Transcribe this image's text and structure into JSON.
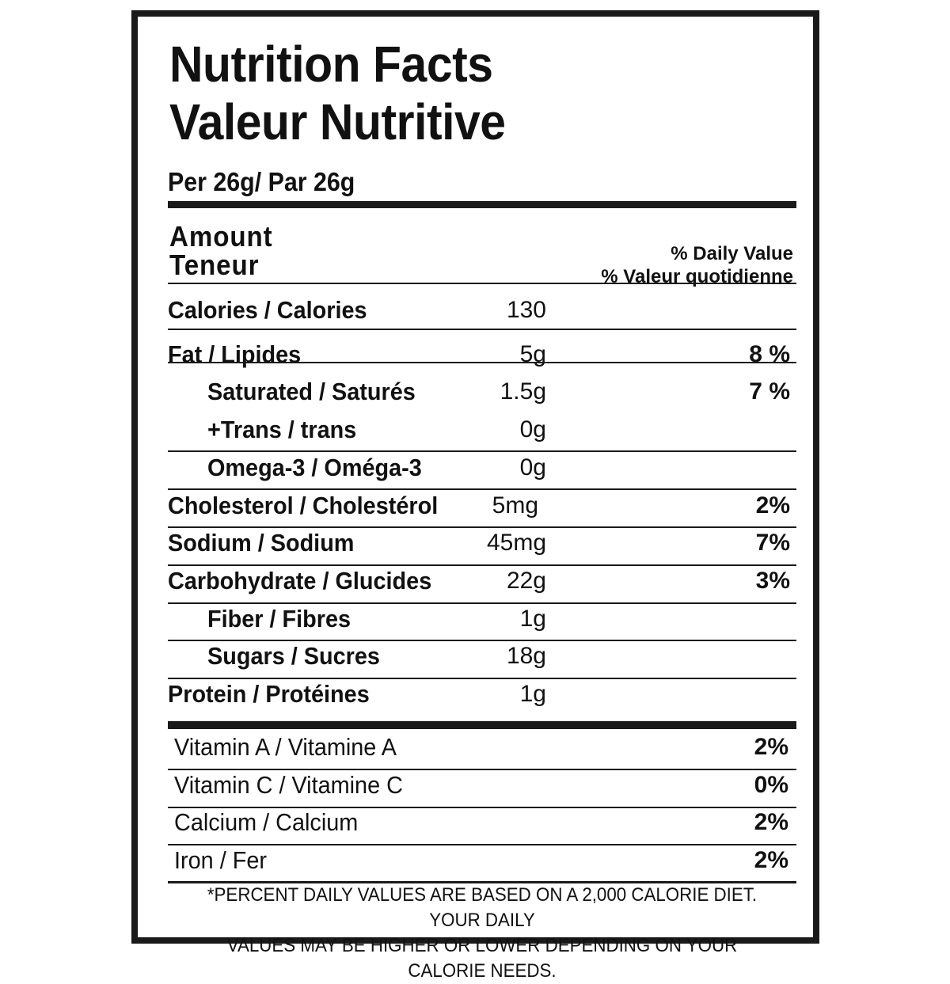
{
  "header": {
    "title_en": "Nutrition Facts",
    "title_fr": "Valeur Nutritive",
    "serving": "Per 26g/ Par 26g",
    "amount_en": "Amount",
    "amount_fr": "Teneur",
    "dv_en": "% Daily Value",
    "dv_fr": "% Valeur quotidienne"
  },
  "nutrients": [
    {
      "label": "Calories / Calories",
      "amount": "130",
      "pct": ""
    },
    {
      "label": "Fat / Lipides",
      "amount": "5g",
      "pct": "8 %"
    },
    {
      "label": "Saturated / Saturés",
      "amount": "1.5g",
      "pct": "7 %"
    },
    {
      "label": "+Trans / trans",
      "amount": "0g",
      "pct": ""
    },
    {
      "label": "Omega-3 / Oméga-3",
      "amount": "0g",
      "pct": ""
    },
    {
      "label": "Cholesterol / Cholestérol",
      "amount": "5mg",
      "pct": "2%"
    },
    {
      "label": "Sodium / Sodium",
      "amount": "45mg",
      "pct": "7%"
    },
    {
      "label": "Carbohydrate / Glucides",
      "amount": "22g",
      "pct": "3%"
    },
    {
      "label": "Fiber / Fibres",
      "amount": "1g",
      "pct": ""
    },
    {
      "label": "Sugars / Sucres",
      "amount": "18g",
      "pct": ""
    },
    {
      "label": "Protein / Protéines",
      "amount": "1g",
      "pct": ""
    }
  ],
  "vitamins": [
    {
      "label": "Vitamin A / Vitamine A",
      "pct": "2%"
    },
    {
      "label": "Vitamin C / Vitamine C",
      "pct": "0%"
    },
    {
      "label": "Calcium / Calcium",
      "pct": "2%"
    },
    {
      "label": "Iron / Fer",
      "pct": "2%"
    }
  ],
  "footnote_line1": "*PERCENT DAILY VALUES ARE BASED ON A 2,000 CALORIE DIET. YOUR DAILY",
  "footnote_line2": "VALUES MAY BE HIGHER OR LOWER DEPENDING ON YOUR CALORIE NEEDS."
}
